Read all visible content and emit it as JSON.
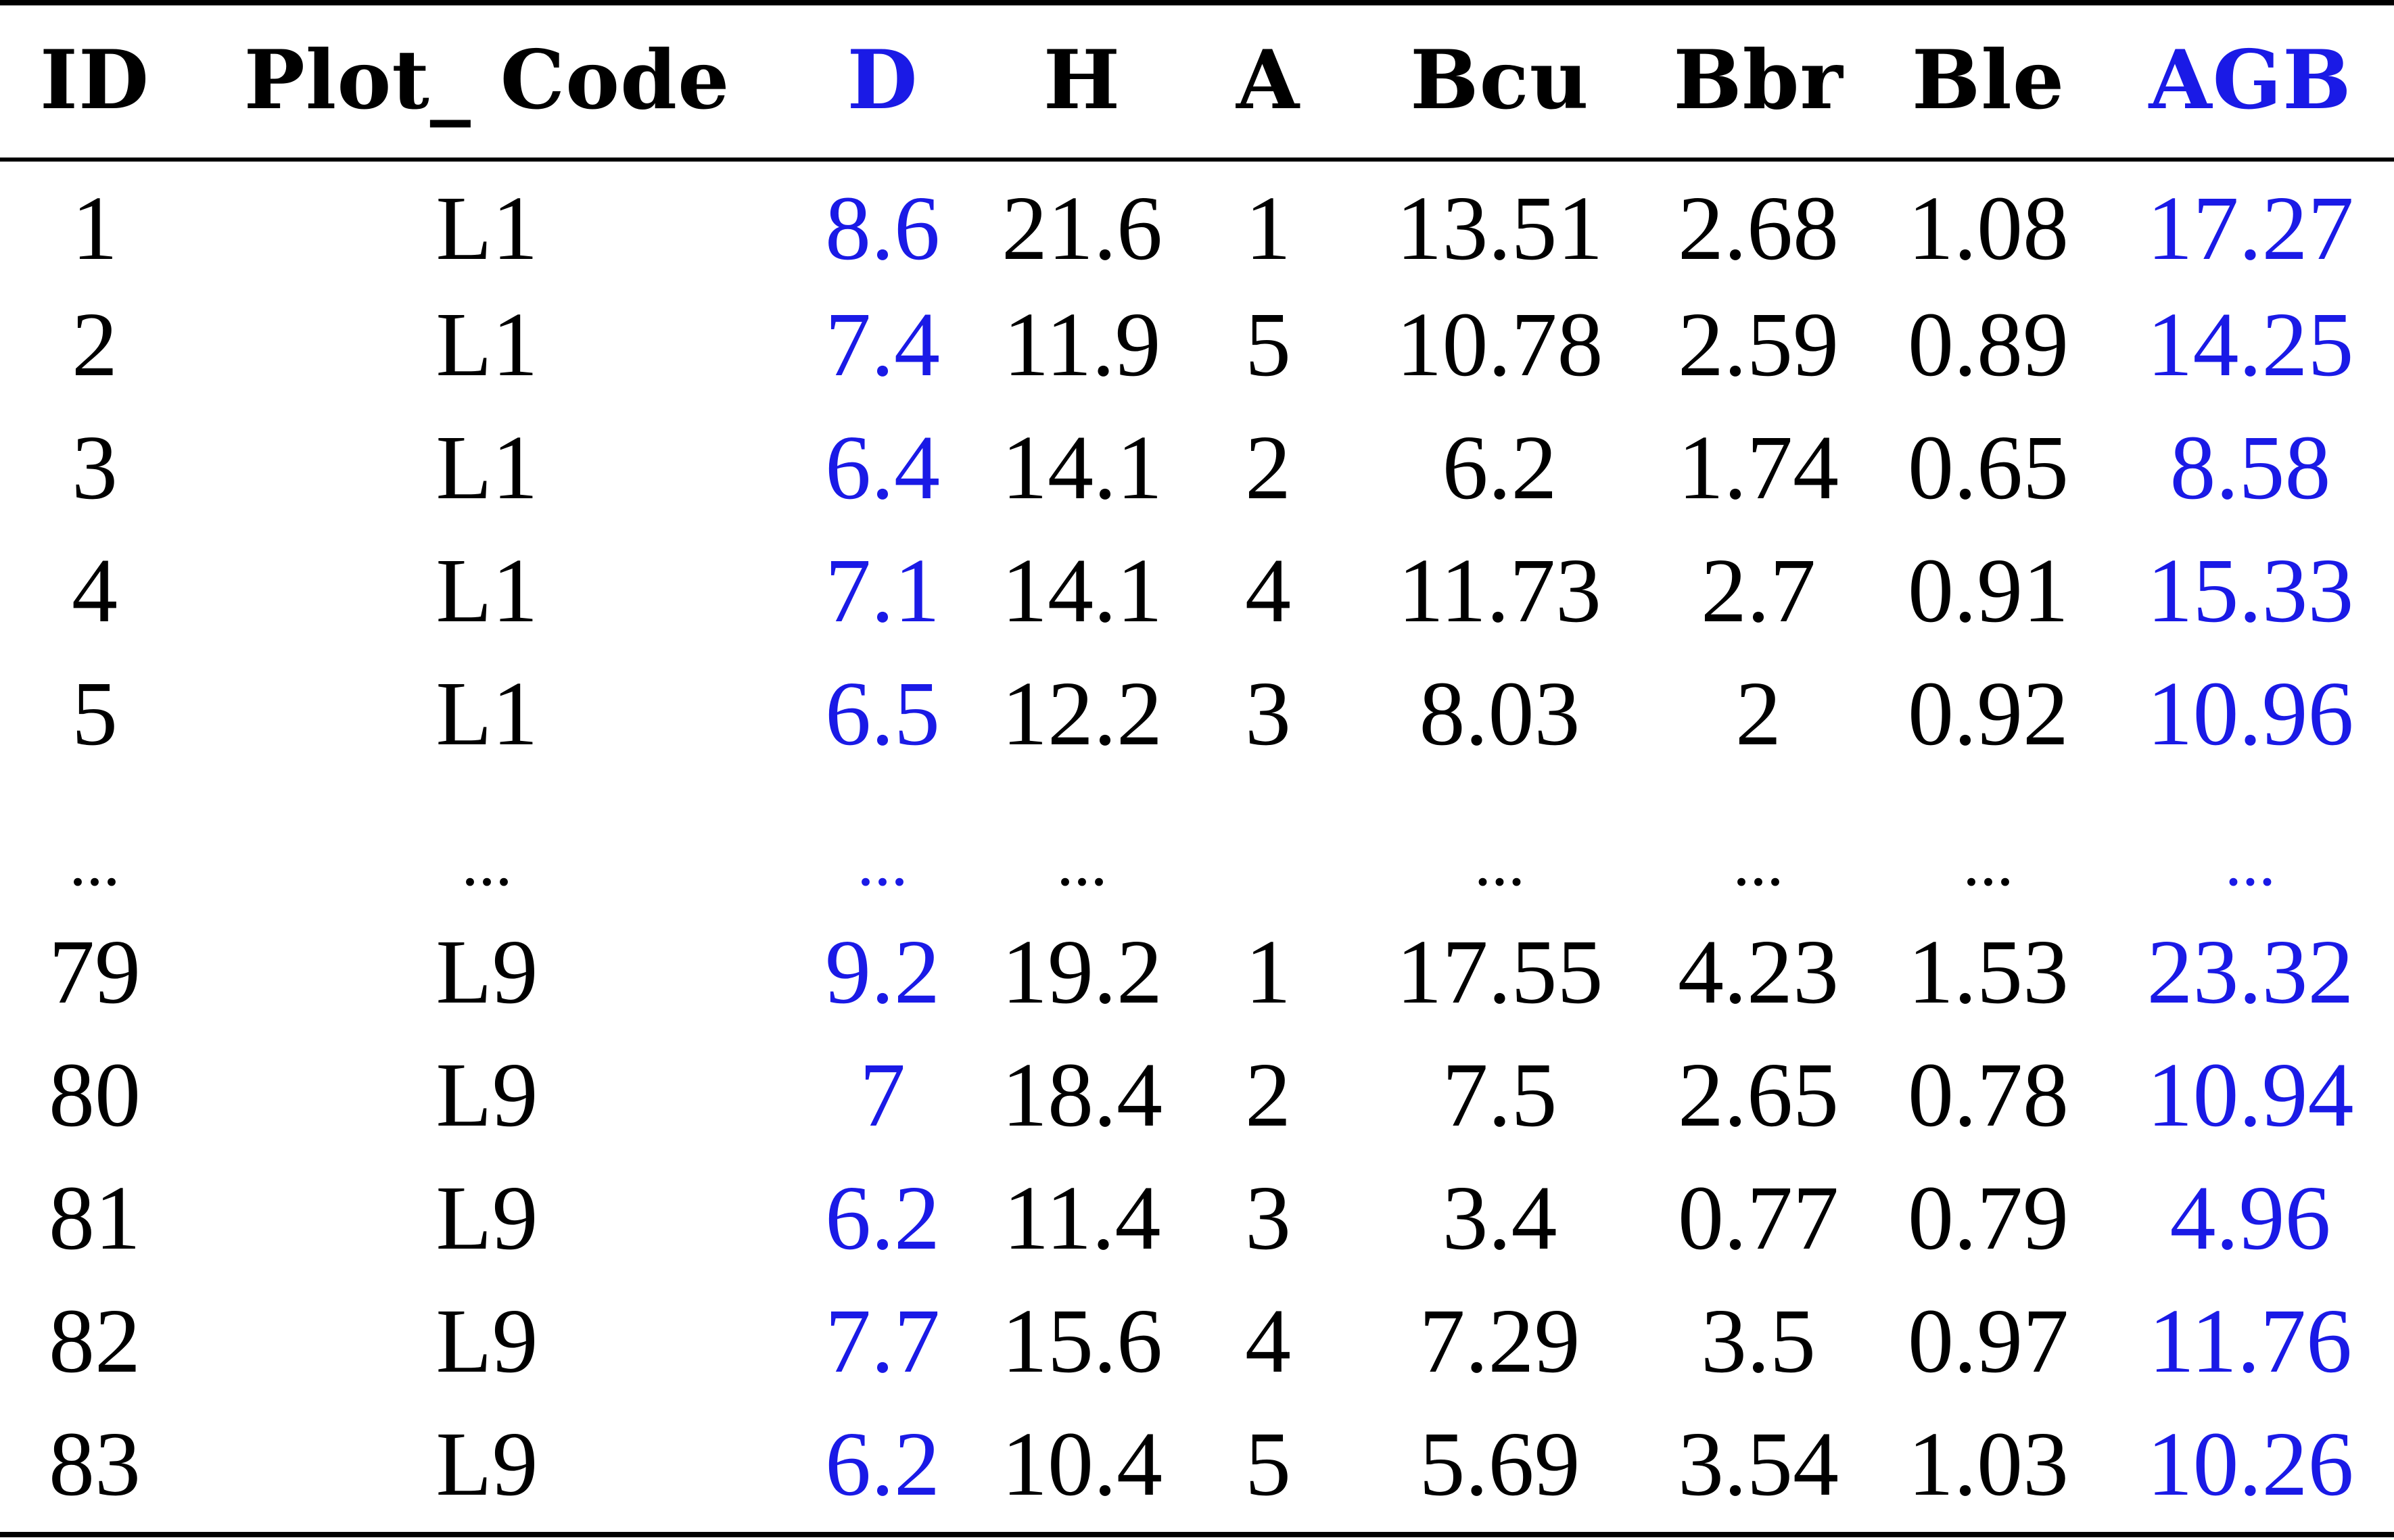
{
  "table": {
    "columns": [
      {
        "key": "id",
        "label": "ID",
        "highlight": false
      },
      {
        "key": "plot_code",
        "label": "Plot_ Code",
        "highlight": false
      },
      {
        "key": "d",
        "label": "D",
        "highlight": true
      },
      {
        "key": "h",
        "label": "H",
        "highlight": false
      },
      {
        "key": "a",
        "label": "A",
        "highlight": false
      },
      {
        "key": "bcu",
        "label": "Bcu",
        "highlight": false
      },
      {
        "key": "bbr",
        "label": "Bbr",
        "highlight": false
      },
      {
        "key": "ble",
        "label": "Ble",
        "highlight": false
      },
      {
        "key": "agb",
        "label": "AGB",
        "highlight": true
      }
    ],
    "rows": [
      [
        "1",
        "L1",
        "8.6",
        "21.6",
        "1",
        "13.51",
        "2.68",
        "1.08",
        "17.27"
      ],
      [
        "2",
        "L1",
        "7.4",
        "11.9",
        "5",
        "10.78",
        "2.59",
        "0.89",
        "14.25"
      ],
      [
        "3",
        "L1",
        "6.4",
        "14.1",
        "2",
        "6.2",
        "1.74",
        "0.65",
        "8.58"
      ],
      [
        "4",
        "L1",
        "7.1",
        "14.1",
        "4",
        "11.73",
        "2.7",
        "0.91",
        "15.33"
      ],
      [
        "5",
        "L1",
        "6.5",
        "12.2",
        "3",
        "8.03",
        "2",
        "0.92",
        "10.96"
      ],
      [
        "...",
        "...",
        "...",
        "...",
        "",
        "...",
        "...",
        "...",
        "..."
      ],
      [
        "79",
        "L9",
        "9.2",
        "19.2",
        "1",
        "17.55",
        "4.23",
        "1.53",
        "23.32"
      ],
      [
        "80",
        "L9",
        "7",
        "18.4",
        "2",
        "7.5",
        "2.65",
        "0.78",
        "10.94"
      ],
      [
        "81",
        "L9",
        "6.2",
        "11.4",
        "3",
        "3.4",
        "0.77",
        "0.79",
        "4.96"
      ],
      [
        "82",
        "L9",
        "7.7",
        "15.6",
        "4",
        "7.29",
        "3.5",
        "0.97",
        "11.76"
      ],
      [
        "83",
        "L9",
        "6.2",
        "10.4",
        "5",
        "5.69",
        "3.54",
        "1.03",
        "10.26"
      ]
    ],
    "colors": {
      "highlight": "#1a1ae6",
      "text": "#000000",
      "rule": "#000000"
    }
  }
}
